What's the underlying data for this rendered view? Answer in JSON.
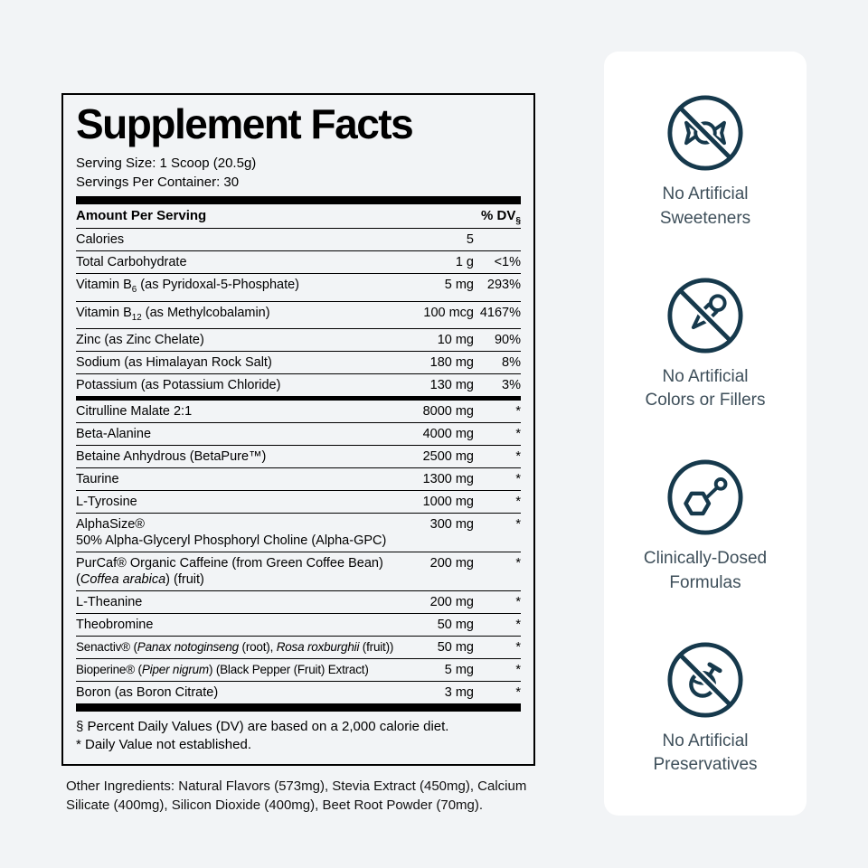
{
  "panel": {
    "title": "Supplement Facts",
    "serving_size": "Serving Size: 1 Scoop (20.5g)",
    "servings_per_container": "Servings Per Container: 30",
    "header_left": "Amount Per Serving",
    "header_right_html": "% DV<sub>§</sub>",
    "rows_top": [
      {
        "name_html": "Calories",
        "amount": "5",
        "dv": ""
      },
      {
        "name_html": "Total Carbohydrate",
        "amount": "1 g",
        "dv": "<1%"
      },
      {
        "name_html": "Vitamin B<sub>6</sub> (as Pyridoxal-5-Phosphate)",
        "amount": "5 mg",
        "dv": "293%"
      },
      {
        "name_html": "Vitamin B<sub>12</sub> (as Methylcobalamin)",
        "amount": "100 mcg",
        "dv": "4167%"
      },
      {
        "name_html": "Zinc (as Zinc Chelate)",
        "amount": "10 mg",
        "dv": "90%"
      },
      {
        "name_html": "Sodium (as Himalayan Rock Salt)",
        "amount": "180 mg",
        "dv": "8%"
      },
      {
        "name_html": "Potassium (as Potassium Chloride)",
        "amount": "130 mg",
        "dv": "3%"
      }
    ],
    "rows_bottom": [
      {
        "name_html": "Citrulline Malate 2:1",
        "amount": "8000 mg",
        "dv": "*"
      },
      {
        "name_html": "Beta-Alanine",
        "amount": "4000 mg",
        "dv": "*"
      },
      {
        "name_html": "Betaine Anhydrous (BetaPure™)",
        "amount": "2500 mg",
        "dv": "*"
      },
      {
        "name_html": "Taurine",
        "amount": "1300 mg",
        "dv": "*"
      },
      {
        "name_html": "L-Tyrosine",
        "amount": "1000 mg",
        "dv": "*"
      },
      {
        "name_html": "AlphaSize®<br>50% Alpha-Glyceryl Phosphoryl Choline (Alpha-GPC)",
        "amount": "300 mg",
        "dv": "*"
      },
      {
        "name_html": "PurCaf® Organic Caffeine (from Green Coffee Bean)<br>(<i>Coffea arabica</i>) (fruit)",
        "amount": "200 mg",
        "dv": "*"
      },
      {
        "name_html": "L-Theanine",
        "amount": "200 mg",
        "dv": "*"
      },
      {
        "name_html": "Theobromine",
        "amount": "50 mg",
        "dv": "*"
      },
      {
        "name_html": "Senactiv® (<i>Panax notoginseng</i> (root), <i>Rosa roxburghii</i> (fruit))",
        "amount": "50 mg",
        "dv": "*",
        "cls": "tight"
      },
      {
        "name_html": "Bioperine® (<i>Piper nigrum</i>) (Black Pepper (Fruit) Extract)",
        "amount": "5 mg",
        "dv": "*",
        "cls": "tight"
      },
      {
        "name_html": "Boron (as Boron Citrate)",
        "amount": "3 mg",
        "dv": "*"
      }
    ],
    "footnotes": [
      "§ Percent Daily Values (DV) are based on a 2,000 calorie diet.",
      "* Daily Value not established."
    ],
    "other_ingredients": "Other Ingredients: Natural Flavors (573mg), Stevia Extract (450mg), Calcium Silicate (400mg), Silicon Dioxide (400mg), Beet Root Powder (70mg)."
  },
  "badges": [
    {
      "icon": "no-artificial-sweeteners-icon",
      "lines": [
        "No Artificial",
        "Sweeteners"
      ]
    },
    {
      "icon": "no-artificial-colors-icon",
      "lines": [
        "No Artificial",
        "Colors or Fillers"
      ]
    },
    {
      "icon": "clinically-dosed-icon",
      "lines": [
        "Clinically-Dosed",
        "Formulas"
      ]
    },
    {
      "icon": "no-artificial-preservatives-icon",
      "lines": [
        "No Artificial",
        "Preservatives"
      ]
    }
  ],
  "colors": {
    "accent": "#16394c",
    "label_text": "#3e4f5a",
    "page_bg": "#f2f4f6",
    "panel_border": "#000000",
    "card_bg": "#ffffff"
  }
}
